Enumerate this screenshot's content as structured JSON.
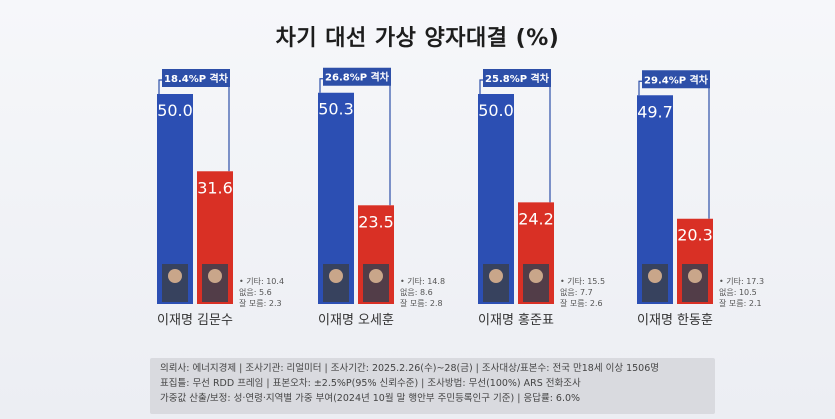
{
  "title": "차기 대선 가상 양자대결 (%)",
  "colors": {
    "blue": "#2c4fb3",
    "red": "#d93025",
    "gap_label_bg": "#2d4fa8",
    "bracket": "#2d4fa8"
  },
  "chart_data": {
    "type": "bar",
    "title": "차기 대선 가상 양자대결 (%)",
    "ylim": [
      0,
      55
    ],
    "groups": [
      {
        "gap_label": "18.4%P 격차",
        "bars": [
          {
            "name": "이재명",
            "value": 50.0,
            "label": "50.0",
            "color": "blue"
          },
          {
            "name": "김문수",
            "value": 31.6,
            "label": "31.6",
            "color": "red"
          }
        ],
        "others": [
          "기타: 10.4",
          "없음: 5.6",
          "잘 모름: 2.3"
        ]
      },
      {
        "gap_label": "26.8%P 격차",
        "bars": [
          {
            "name": "이재명",
            "value": 50.3,
            "label": "50.3",
            "color": "blue"
          },
          {
            "name": "오세훈",
            "value": 23.5,
            "label": "23.5",
            "color": "red"
          }
        ],
        "others": [
          "기타: 14.8",
          "없음: 8.6",
          "잘 모름: 2.8"
        ]
      },
      {
        "gap_label": "25.8%P 격차",
        "bars": [
          {
            "name": "이재명",
            "value": 50.0,
            "label": "50.0",
            "color": "blue"
          },
          {
            "name": "홍준표",
            "value": 24.2,
            "label": "24.2",
            "color": "red"
          }
        ],
        "others": [
          "기타: 15.5",
          "없음: 7.7",
          "잘 모름: 2.6"
        ]
      },
      {
        "gap_label": "29.4%P 격차",
        "bars": [
          {
            "name": "이재명",
            "value": 49.7,
            "label": "49.7",
            "color": "blue"
          },
          {
            "name": "한동훈",
            "value": 20.3,
            "label": "20.3",
            "color": "red"
          }
        ],
        "others": [
          "기타: 17.3",
          "없음: 10.5",
          "잘 모름: 2.1"
        ]
      }
    ]
  },
  "footer": {
    "line1": "의뢰사: 에너지경제 | 조사기관: 리얼미터 | 조사기간: 2025.2.26(수)~28(금) | 조사대상/표본수: 전국 만18세 이상 1506명",
    "line2": "표집틀: 무선 RDD 프레임 | 표본오차: ±2.5%P(95% 신뢰수준) | 조사방법: 무선(100%) ARS 전화조사",
    "line3": "가중값 산출/보정: 성·연령·지역별 가중 부여(2024년 10월 말 행안부 주민등록인구 기준) | 응답률: 6.0%"
  }
}
